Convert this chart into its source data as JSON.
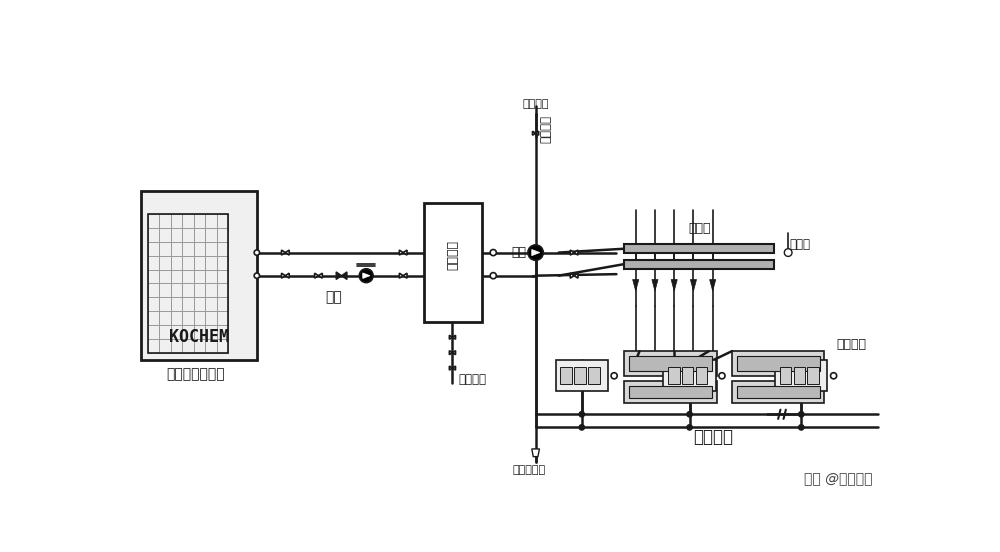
{
  "bg_color": "#ffffff",
  "line_color": "#1a1a1a",
  "label_heat_pump": "KOCHEM",
  "label_heat_pump_sub": "空气能热泵主机",
  "label_buffer_tank": "缓冲水筒",
  "label_water_pump": "水泵",
  "label_manifold": "分水棆",
  "label_temp_sensor": "温度计",
  "label_floor_heat": "地暖管道",
  "label_auto_vent": "自动排气阀",
  "label_municipal_water": "市政补水",
  "label_fan_coil": "风机盘管",
  "footer": "头条 @制冷社区",
  "figsize": [
    10.0,
    5.52
  ],
  "dpi": 100
}
